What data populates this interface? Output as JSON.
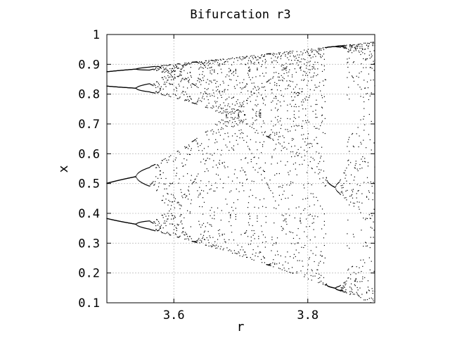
{
  "chart_data": {
    "type": "scatter",
    "title": "Bifurcation r3",
    "xlabel": "r",
    "ylabel": "x",
    "xlim": [
      3.5,
      3.9
    ],
    "ylim": [
      0.1,
      1.0
    ],
    "xticks": [
      3.6,
      3.8
    ],
    "xtick_labels": [
      "3.6",
      "3.8"
    ],
    "yticks": [
      0.1,
      0.2,
      0.3,
      0.4,
      0.5,
      0.6,
      0.7,
      0.8,
      0.9,
      1.0
    ],
    "ytick_labels": [
      "0.1",
      "0.2",
      "0.3",
      "0.4",
      "0.5",
      "0.6",
      "0.7",
      "0.8",
      "0.9",
      "1"
    ],
    "grid": true,
    "legend": "none",
    "marker_color": "#000000",
    "series": [
      {
        "map": "logistic",
        "r_range": [
          3.5,
          3.9
        ],
        "r_steps": 400,
        "x0": 0.5,
        "transient_iterations": 300,
        "plotted_iterations": 8
      }
    ]
  }
}
